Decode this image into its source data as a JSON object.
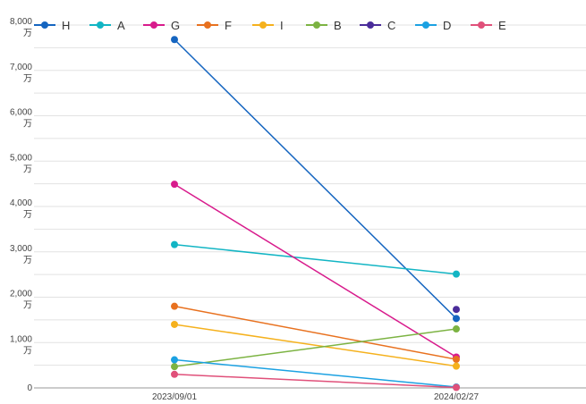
{
  "chart_data": {
    "type": "line",
    "title": "",
    "xlabel": "",
    "ylabel": "",
    "x": [
      "2023/09/01",
      "2024/02/27"
    ],
    "ylim": [
      0,
      80000000
    ],
    "yticks": [
      {
        "value": 0,
        "label": "0",
        "unit": ""
      },
      {
        "value": 10000000,
        "label": "1,000",
        "unit": "万"
      },
      {
        "value": 20000000,
        "label": "2,000",
        "unit": "万"
      },
      {
        "value": 30000000,
        "label": "3,000",
        "unit": "万"
      },
      {
        "value": 40000000,
        "label": "4,000",
        "unit": "万"
      },
      {
        "value": 50000000,
        "label": "5,000",
        "unit": "万"
      },
      {
        "value": 60000000,
        "label": "6,000",
        "unit": "万"
      },
      {
        "value": 70000000,
        "label": "7,000",
        "unit": "万"
      },
      {
        "value": 80000000,
        "label": "8,000",
        "unit": "万"
      }
    ],
    "grid": true,
    "legend_position": "top-left",
    "series": [
      {
        "name": "H",
        "color": "#1565c0",
        "values": [
          76800000,
          15300000
        ]
      },
      {
        "name": "A",
        "color": "#12b5c4",
        "values": [
          31600000,
          25100000
        ]
      },
      {
        "name": "G",
        "color": "#d81b8c",
        "values": [
          44900000,
          6800000
        ]
      },
      {
        "name": "F",
        "color": "#e8711f",
        "values": [
          18000000,
          6300000
        ]
      },
      {
        "name": "I",
        "color": "#f5b11d",
        "values": [
          14000000,
          4800000
        ]
      },
      {
        "name": "B",
        "color": "#7cb342",
        "values": [
          4700000,
          13000000
        ]
      },
      {
        "name": "C",
        "color": "#4a2c9a",
        "values": null,
        "last": 17300000
      },
      {
        "name": "D",
        "color": "#1ba1e2",
        "values": [
          6200000,
          200000
        ]
      },
      {
        "name": "E",
        "color": "#e0507a",
        "values": [
          3000000,
          100000
        ]
      }
    ]
  }
}
